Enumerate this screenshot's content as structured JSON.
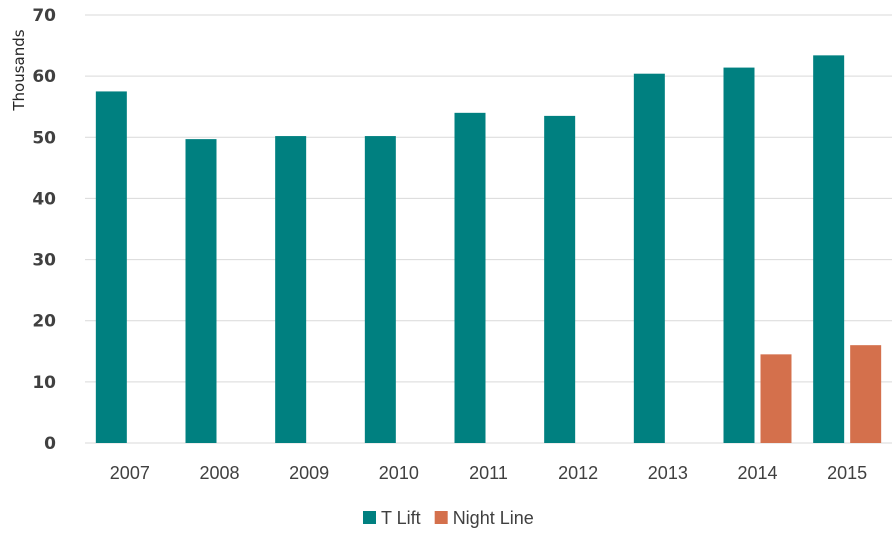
{
  "chart_data": {
    "type": "bar",
    "title": "",
    "xlabel": "",
    "ylabel": "Thousands",
    "ylim": [
      0,
      70
    ],
    "yticks": [
      "0",
      "10",
      "20",
      "30",
      "40",
      "50",
      "60",
      "70"
    ],
    "categories": [
      "2007",
      "2008",
      "2009",
      "2010",
      "2011",
      "2012",
      "2013",
      "2014",
      "2015"
    ],
    "series": [
      {
        "name": "T Lift",
        "color": "#008080",
        "values": [
          57.5,
          49.7,
          50.2,
          50.2,
          54.0,
          53.5,
          60.4,
          61.4,
          63.4
        ]
      },
      {
        "name": "Night Line",
        "color": "#D4704C",
        "values": [
          null,
          null,
          null,
          null,
          null,
          null,
          null,
          14.5,
          16.0
        ]
      }
    ],
    "grid": true,
    "legend": "bottom-center"
  }
}
